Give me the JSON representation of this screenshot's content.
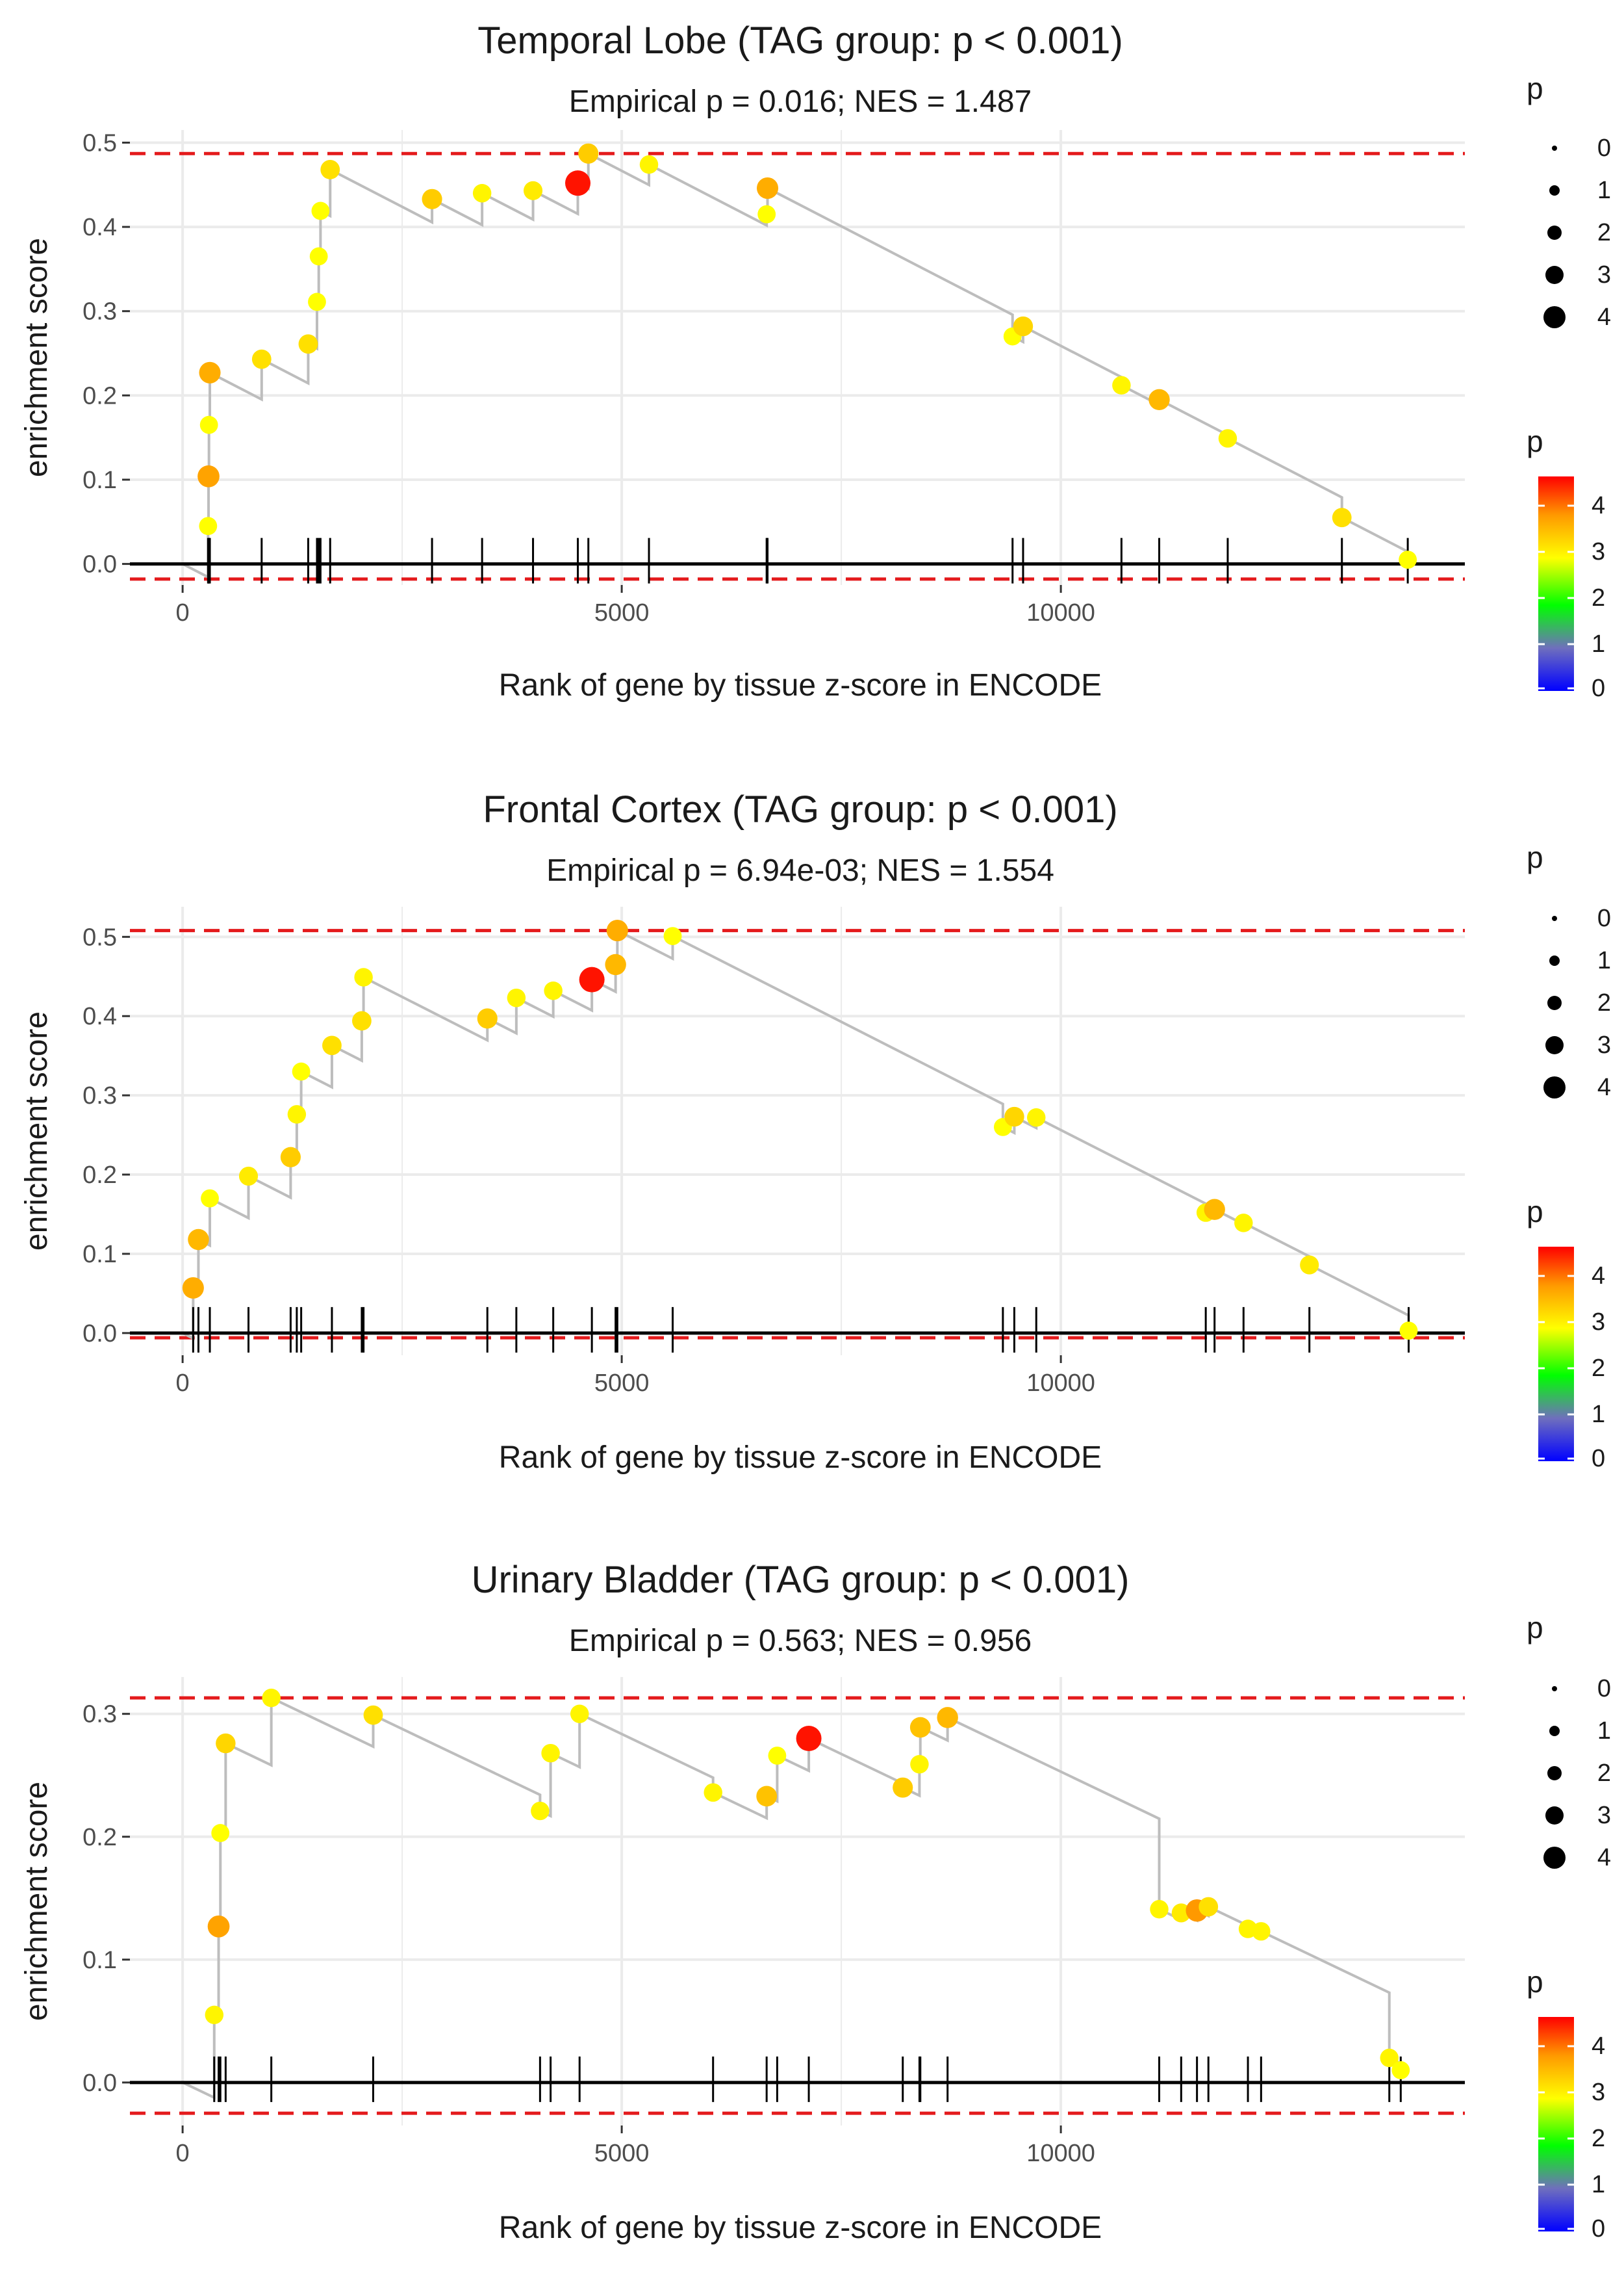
{
  "colors": {
    "grid": "#ebebeb",
    "step_line": "#bdbdbd",
    "threshold_line": "#e41a1c",
    "axis_line": "#000000",
    "text": "#1a1a1a",
    "tick_text": "#4d4d4d",
    "gradient": [
      "#0000ff",
      "#00ff00",
      "#ffff00",
      "#ff9900",
      "#ff0000"
    ]
  },
  "legend": {
    "size_title": "p",
    "size_labels": [
      "0",
      "1",
      "2",
      "3",
      "4"
    ],
    "color_title": "p",
    "color_labels": [
      "4",
      "3",
      "2",
      "1",
      "0"
    ]
  },
  "chart_data": [
    {
      "type": "scatter",
      "title": "Temporal Lobe (TAG group: p < 0.001)",
      "subtitle": "Empirical p = 0.016; NES = 1.487",
      "xlabel": "Rank of gene by tissue z-score in ENCODE",
      "ylabel": "enrichment score",
      "xlim": [
        -600,
        14600
      ],
      "ylim": [
        -0.025,
        0.515
      ],
      "xticks": [
        0,
        5000,
        10000
      ],
      "xtick_labels": [
        "0",
        "5000",
        "10000"
      ],
      "yticks": [
        0,
        0.1,
        0.2,
        0.3,
        0.4,
        0.5
      ],
      "ytick_labels": [
        "0.0",
        "0.1",
        "0.2",
        "0.3",
        "0.4",
        "0.5"
      ],
      "max_es": 0.487,
      "min_es": -0.018,
      "points": [
        {
          "x": 290,
          "y": 0.045,
          "p": 3.0
        },
        {
          "x": 295,
          "y": 0.104,
          "p": 3.9
        },
        {
          "x": 300,
          "y": 0.165,
          "p": 3.0
        },
        {
          "x": 310,
          "y": 0.227,
          "p": 3.8
        },
        {
          "x": 900,
          "y": 0.243,
          "p": 3.3
        },
        {
          "x": 1430,
          "y": 0.261,
          "p": 3.3
        },
        {
          "x": 1530,
          "y": 0.311,
          "p": 3.0
        },
        {
          "x": 1550,
          "y": 0.365,
          "p": 3.0
        },
        {
          "x": 1570,
          "y": 0.419,
          "p": 3.0
        },
        {
          "x": 1680,
          "y": 0.468,
          "p": 3.3
        },
        {
          "x": 2840,
          "y": 0.433,
          "p": 3.5
        },
        {
          "x": 3410,
          "y": 0.44,
          "p": 3.1
        },
        {
          "x": 3990,
          "y": 0.443,
          "p": 3.2
        },
        {
          "x": 4500,
          "y": 0.452,
          "p": 4.7
        },
        {
          "x": 4620,
          "y": 0.487,
          "p": 3.5
        },
        {
          "x": 5310,
          "y": 0.474,
          "p": 3.1
        },
        {
          "x": 6650,
          "y": 0.415,
          "p": 3.0
        },
        {
          "x": 6660,
          "y": 0.446,
          "p": 3.8
        },
        {
          "x": 9450,
          "y": 0.27,
          "p": 3.0
        },
        {
          "x": 9570,
          "y": 0.282,
          "p": 3.4
        },
        {
          "x": 10690,
          "y": 0.212,
          "p": 3.1
        },
        {
          "x": 11120,
          "y": 0.195,
          "p": 3.7
        },
        {
          "x": 11900,
          "y": 0.149,
          "p": 3.1
        },
        {
          "x": 13200,
          "y": 0.055,
          "p": 3.3
        },
        {
          "x": 13950,
          "y": 0.005,
          "p": 3.0
        }
      ]
    },
    {
      "type": "scatter",
      "title": "Frontal Cortex (TAG group: p < 0.001)",
      "subtitle": "Empirical p = 6.94e-03; NES = 1.554",
      "xlabel": "Rank of gene by tissue z-score in ENCODE",
      "ylabel": "enrichment score",
      "xlim": [
        -600,
        14600
      ],
      "ylim": [
        -0.028,
        0.538
      ],
      "xticks": [
        0,
        5000,
        10000
      ],
      "xtick_labels": [
        "0",
        "5000",
        "10000"
      ],
      "yticks": [
        0,
        0.1,
        0.2,
        0.3,
        0.4,
        0.5
      ],
      "ytick_labels": [
        "0.0",
        "0.1",
        "0.2",
        "0.3",
        "0.4",
        "0.5"
      ],
      "max_es": 0.508,
      "min_es": -0.006,
      "points": [
        {
          "x": 120,
          "y": 0.057,
          "p": 3.8
        },
        {
          "x": 180,
          "y": 0.118,
          "p": 3.7
        },
        {
          "x": 310,
          "y": 0.17,
          "p": 3.0
        },
        {
          "x": 750,
          "y": 0.198,
          "p": 3.2
        },
        {
          "x": 1230,
          "y": 0.222,
          "p": 3.5
        },
        {
          "x": 1300,
          "y": 0.276,
          "p": 3.1
        },
        {
          "x": 1350,
          "y": 0.33,
          "p": 3.0
        },
        {
          "x": 1700,
          "y": 0.363,
          "p": 3.3
        },
        {
          "x": 2040,
          "y": 0.394,
          "p": 3.3
        },
        {
          "x": 2060,
          "y": 0.449,
          "p": 3.1
        },
        {
          "x": 3470,
          "y": 0.397,
          "p": 3.5
        },
        {
          "x": 3800,
          "y": 0.423,
          "p": 3.1
        },
        {
          "x": 4220,
          "y": 0.432,
          "p": 3.1
        },
        {
          "x": 4660,
          "y": 0.446,
          "p": 4.7
        },
        {
          "x": 4930,
          "y": 0.465,
          "p": 3.7
        },
        {
          "x": 4950,
          "y": 0.508,
          "p": 3.8
        },
        {
          "x": 5580,
          "y": 0.501,
          "p": 3.0
        },
        {
          "x": 9340,
          "y": 0.26,
          "p": 3.0
        },
        {
          "x": 9470,
          "y": 0.273,
          "p": 3.4
        },
        {
          "x": 9720,
          "y": 0.272,
          "p": 3.1
        },
        {
          "x": 11650,
          "y": 0.152,
          "p": 3.1
        },
        {
          "x": 11750,
          "y": 0.156,
          "p": 3.7
        },
        {
          "x": 12080,
          "y": 0.139,
          "p": 3.1
        },
        {
          "x": 12830,
          "y": 0.086,
          "p": 3.2
        },
        {
          "x": 13960,
          "y": 0.003,
          "p": 3.0
        }
      ]
    },
    {
      "type": "scatter",
      "title": "Urinary Bladder (TAG group: p < 0.001)",
      "subtitle": "Empirical p = 0.563; NES = 0.956",
      "xlabel": "Rank of gene by tissue z-score in ENCODE",
      "ylabel": "enrichment score",
      "xlim": [
        -600,
        14600
      ],
      "ylim": [
        -0.035,
        0.33
      ],
      "xticks": [
        0,
        5000,
        10000
      ],
      "xtick_labels": [
        "0",
        "5000",
        "10000"
      ],
      "yticks": [
        0,
        0.1,
        0.2,
        0.3
      ],
      "ytick_labels": [
        "0.0",
        "0.1",
        "0.2",
        "0.3"
      ],
      "max_es": 0.313,
      "min_es": -0.025,
      "points": [
        {
          "x": 360,
          "y": 0.055,
          "p": 3.1
        },
        {
          "x": 410,
          "y": 0.127,
          "p": 3.9
        },
        {
          "x": 430,
          "y": 0.203,
          "p": 3.0
        },
        {
          "x": 490,
          "y": 0.276,
          "p": 3.4
        },
        {
          "x": 1010,
          "y": 0.313,
          "p": 3.1
        },
        {
          "x": 2170,
          "y": 0.299,
          "p": 3.3
        },
        {
          "x": 4070,
          "y": 0.221,
          "p": 3.1
        },
        {
          "x": 4190,
          "y": 0.268,
          "p": 3.1
        },
        {
          "x": 4520,
          "y": 0.3,
          "p": 3.1
        },
        {
          "x": 6040,
          "y": 0.236,
          "p": 3.1
        },
        {
          "x": 6650,
          "y": 0.233,
          "p": 3.6
        },
        {
          "x": 6770,
          "y": 0.266,
          "p": 3.0
        },
        {
          "x": 7130,
          "y": 0.28,
          "p": 4.7
        },
        {
          "x": 8200,
          "y": 0.24,
          "p": 3.5
        },
        {
          "x": 8390,
          "y": 0.259,
          "p": 3.1
        },
        {
          "x": 8400,
          "y": 0.289,
          "p": 3.6
        },
        {
          "x": 8710,
          "y": 0.297,
          "p": 3.7
        },
        {
          "x": 11120,
          "y": 0.141,
          "p": 3.1
        },
        {
          "x": 11370,
          "y": 0.138,
          "p": 3.2
        },
        {
          "x": 11550,
          "y": 0.14,
          "p": 4.0
        },
        {
          "x": 11680,
          "y": 0.143,
          "p": 3.3
        },
        {
          "x": 12130,
          "y": 0.125,
          "p": 3.1
        },
        {
          "x": 12280,
          "y": 0.123,
          "p": 3.1
        },
        {
          "x": 13740,
          "y": 0.02,
          "p": 3.1
        },
        {
          "x": 13870,
          "y": 0.01,
          "p": 3.0
        }
      ]
    }
  ]
}
